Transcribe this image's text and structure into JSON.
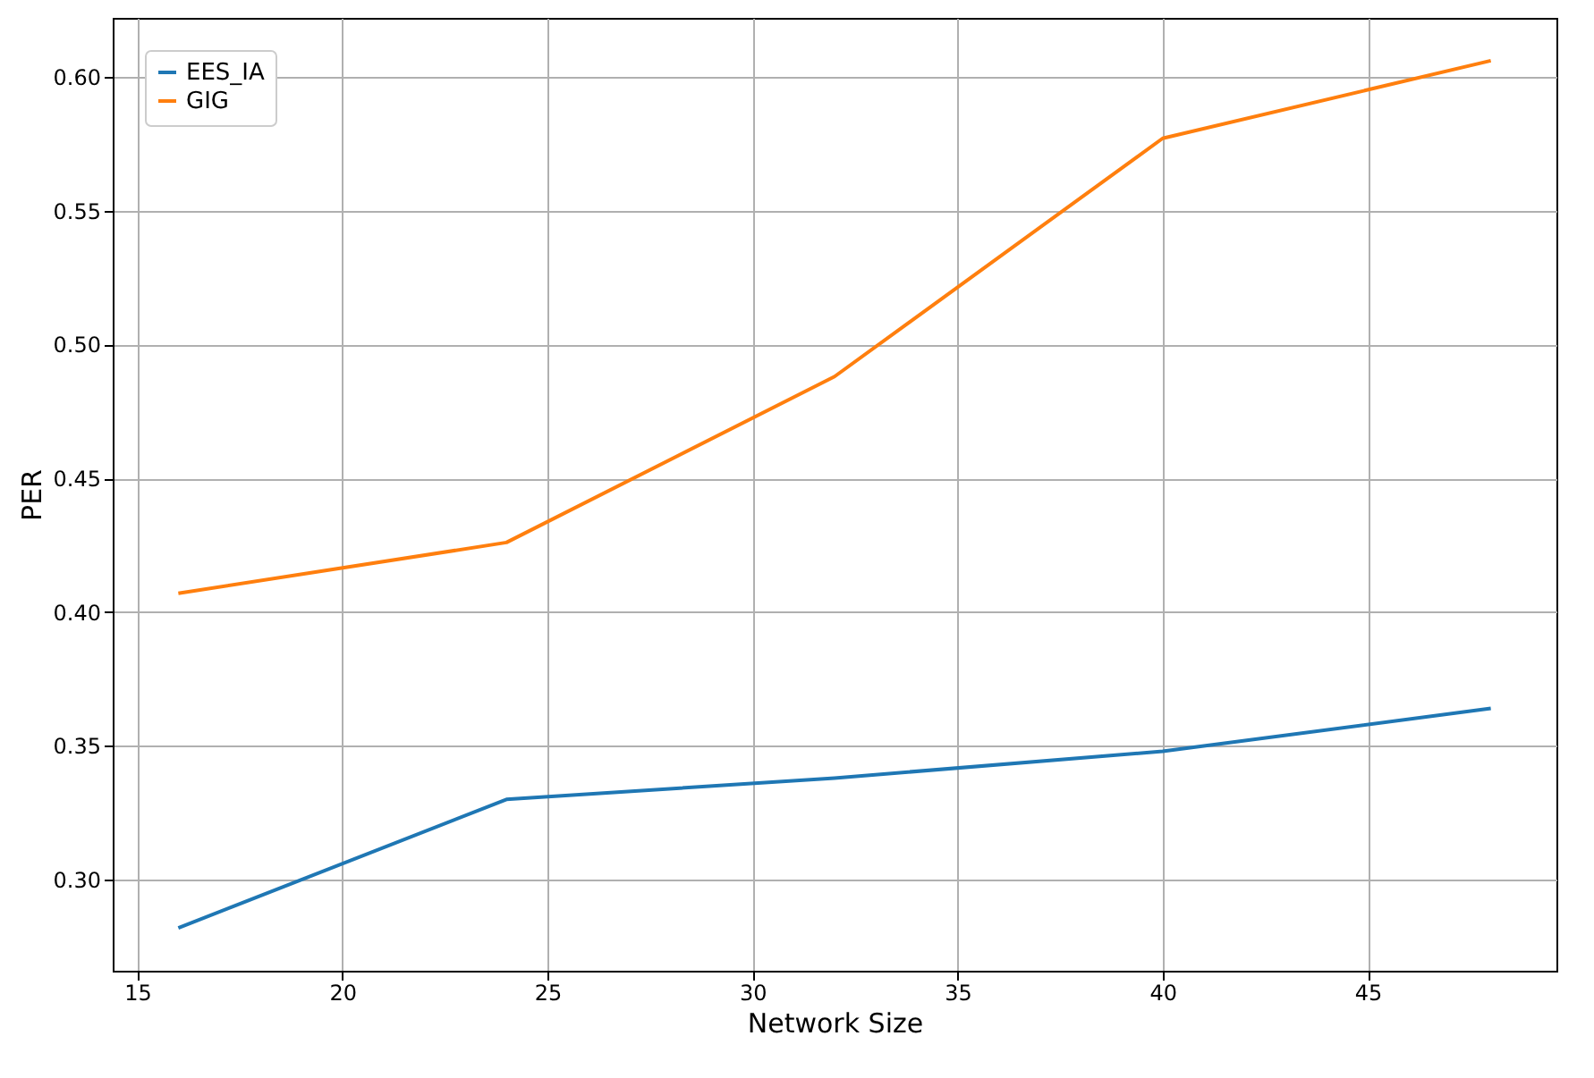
{
  "chart_data": {
    "type": "line",
    "xlabel": "Network Size",
    "ylabel": "PER",
    "x": [
      16,
      24,
      32,
      40,
      48
    ],
    "series": [
      {
        "name": "EES_IA",
        "color": "#1f77b4",
        "values": [
          0.282,
          0.33,
          0.338,
          0.348,
          0.364
        ]
      },
      {
        "name": "GIG",
        "color": "#ff7f0e",
        "values": [
          0.407,
          0.426,
          0.488,
          0.577,
          0.606
        ]
      }
    ],
    "xlim": [
      14.4,
      49.6
    ],
    "xticks": [
      15,
      20,
      25,
      30,
      35,
      40,
      45
    ],
    "ylim": [
      0.266,
      0.622
    ],
    "yticks": [
      {
        "value": 0.3,
        "label": "0.30"
      },
      {
        "value": 0.35,
        "label": "0.35"
      },
      {
        "value": 0.4,
        "label": "0.40"
      },
      {
        "value": 0.45,
        "label": "0.45"
      },
      {
        "value": 0.5,
        "label": "0.50"
      },
      {
        "value": 0.55,
        "label": "0.55"
      },
      {
        "value": 0.6,
        "label": "0.60"
      }
    ],
    "grid": true,
    "legend": "top left",
    "marker": "none",
    "line_style": "solid"
  }
}
